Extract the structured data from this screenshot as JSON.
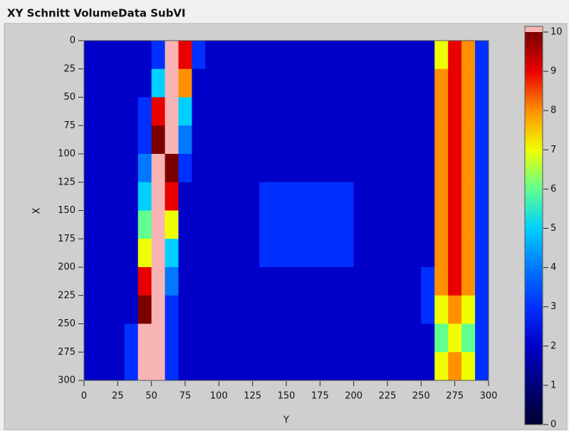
{
  "chart_data": {
    "type": "heatmap",
    "title": "XY Schnitt VolumeData SubVI",
    "xlabel": "Y",
    "ylabel": "X",
    "xlim": [
      0,
      300
    ],
    "ylim": [
      0,
      300
    ],
    "y_inverted": true,
    "xticks": [
      0,
      25,
      50,
      75,
      100,
      125,
      150,
      175,
      200,
      225,
      250,
      275,
      300
    ],
    "yticks": [
      0,
      25,
      50,
      75,
      100,
      125,
      150,
      175,
      200,
      225,
      250,
      275,
      300
    ],
    "clim": [
      0,
      10
    ],
    "cticks": [
      0,
      1,
      2,
      3,
      4,
      5,
      6,
      7,
      8,
      9,
      10
    ],
    "colorscale": [
      "#000030",
      "#00007a",
      "#0000c8",
      "#0030ff",
      "#0078ff",
      "#00d0ff",
      "#60ff90",
      "#f0ff00",
      "#ff9000",
      "#e80000",
      "#7a0000"
    ],
    "above_color": "#f8b4b4",
    "z": [
      [
        2,
        2,
        2,
        2,
        2,
        3,
        12,
        9,
        3,
        2,
        2,
        2,
        2,
        2,
        2,
        2,
        2,
        2,
        2,
        2,
        2,
        2,
        2,
        2,
        2,
        2,
        7,
        9,
        8,
        3
      ],
      [
        2,
        2,
        2,
        2,
        2,
        5,
        12,
        8,
        2,
        2,
        2,
        2,
        2,
        2,
        2,
        2,
        2,
        2,
        2,
        2,
        2,
        2,
        2,
        2,
        2,
        2,
        8,
        9,
        8,
        3
      ],
      [
        2,
        2,
        2,
        2,
        3,
        9,
        12,
        5,
        2,
        2,
        2,
        2,
        2,
        2,
        2,
        2,
        2,
        2,
        2,
        2,
        2,
        2,
        2,
        2,
        2,
        2,
        8,
        9,
        8,
        3
      ],
      [
        2,
        2,
        2,
        2,
        3,
        10,
        12,
        4,
        2,
        2,
        2,
        2,
        2,
        2,
        2,
        2,
        2,
        2,
        2,
        2,
        2,
        2,
        2,
        2,
        2,
        2,
        8,
        9,
        8,
        3
      ],
      [
        2,
        2,
        2,
        2,
        4,
        12,
        10,
        3,
        2,
        2,
        2,
        2,
        2,
        2,
        2,
        2,
        2,
        2,
        2,
        2,
        2,
        2,
        2,
        2,
        2,
        2,
        8,
        9,
        8,
        3
      ],
      [
        2,
        2,
        2,
        2,
        5,
        12,
        9,
        2,
        2,
        2,
        2,
        2,
        2,
        3,
        3,
        3,
        3,
        3,
        3,
        3,
        2,
        2,
        2,
        2,
        2,
        2,
        8,
        9,
        8,
        3
      ],
      [
        2,
        2,
        2,
        2,
        6,
        12,
        7,
        2,
        2,
        2,
        2,
        2,
        2,
        3,
        3,
        3,
        3,
        3,
        3,
        3,
        2,
        2,
        2,
        2,
        2,
        2,
        8,
        9,
        8,
        3
      ],
      [
        2,
        2,
        2,
        2,
        7,
        12,
        5,
        2,
        2,
        2,
        2,
        2,
        2,
        3,
        3,
        3,
        3,
        3,
        3,
        3,
        2,
        2,
        2,
        2,
        2,
        2,
        8,
        9,
        8,
        3
      ],
      [
        2,
        2,
        2,
        2,
        9,
        12,
        4,
        2,
        2,
        2,
        2,
        2,
        2,
        2,
        2,
        2,
        2,
        2,
        2,
        2,
        2,
        2,
        2,
        2,
        2,
        3,
        8,
        9,
        8,
        3
      ],
      [
        2,
        2,
        2,
        2,
        10,
        12,
        3,
        2,
        2,
        2,
        2,
        2,
        2,
        2,
        2,
        2,
        2,
        2,
        2,
        2,
        2,
        2,
        2,
        2,
        2,
        3,
        7,
        8,
        7,
        3
      ],
      [
        2,
        2,
        2,
        3,
        12,
        12,
        3,
        2,
        2,
        2,
        2,
        2,
        2,
        2,
        2,
        2,
        2,
        2,
        2,
        2,
        2,
        2,
        2,
        2,
        2,
        2,
        6,
        7,
        6,
        3
      ],
      [
        2,
        2,
        2,
        3,
        12,
        11,
        3,
        2,
        2,
        2,
        2,
        2,
        2,
        2,
        2,
        2,
        2,
        2,
        2,
        2,
        2,
        2,
        2,
        2,
        2,
        2,
        7,
        8,
        7,
        3
      ]
    ]
  }
}
